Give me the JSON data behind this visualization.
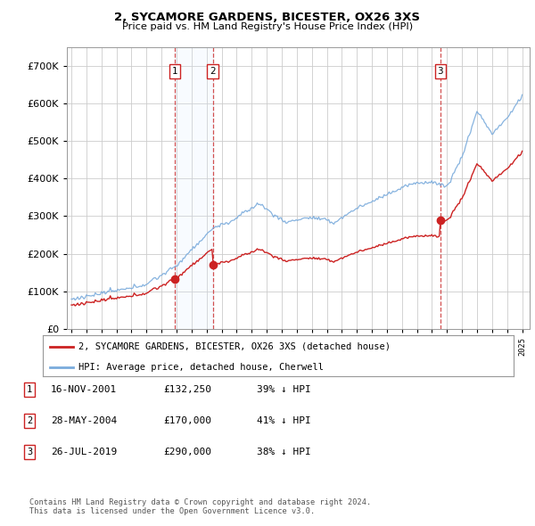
{
  "title1": "2, SYCAMORE GARDENS, BICESTER, OX26 3XS",
  "title2": "Price paid vs. HM Land Registry's House Price Index (HPI)",
  "hpi_color": "#7aabdc",
  "price_color": "#cc2222",
  "marker_color": "#cc2222",
  "vline_color": "#cc3333",
  "shade_color": "#ddeeff",
  "grid_color": "#cccccc",
  "transaction_dates": [
    2001.877,
    2004.41,
    2019.56
  ],
  "transaction_prices": [
    132250,
    170000,
    290000
  ],
  "transaction_labels": [
    "1",
    "2",
    "3"
  ],
  "legend_property": "2, SYCAMORE GARDENS, BICESTER, OX26 3XS (detached house)",
  "legend_hpi": "HPI: Average price, detached house, Cherwell",
  "table_rows": [
    [
      "1",
      "16-NOV-2001",
      "£132,250",
      "39% ↓ HPI"
    ],
    [
      "2",
      "28-MAY-2004",
      "£170,000",
      "41% ↓ HPI"
    ],
    [
      "3",
      "26-JUL-2019",
      "£290,000",
      "38% ↓ HPI"
    ]
  ],
  "footnote1": "Contains HM Land Registry data © Crown copyright and database right 2024.",
  "footnote2": "This data is licensed under the Open Government Licence v3.0.",
  "background_color": "#ffffff",
  "ylim": [
    0,
    750000
  ],
  "xlim_min": 1994.7,
  "xlim_max": 2025.5
}
